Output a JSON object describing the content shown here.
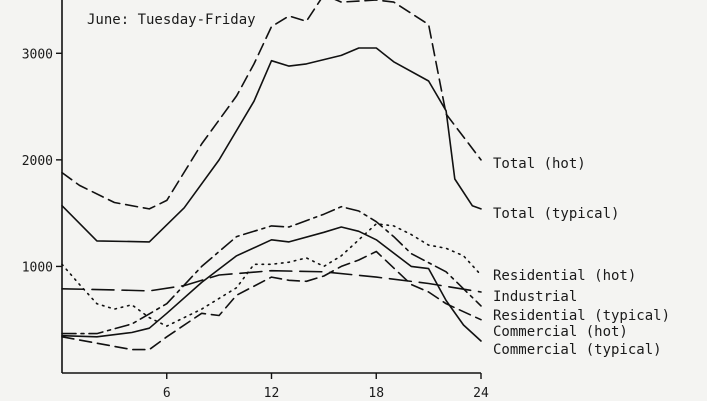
{
  "chart_data": {
    "type": "line",
    "title": "June: Tuesday-Friday",
    "xlabel": "",
    "ylabel": "",
    "xlim": [
      0,
      24
    ],
    "ylim": [
      0,
      3500
    ],
    "x_ticks": [
      6,
      12,
      18,
      24
    ],
    "y_ticks": [
      1000,
      2000,
      3000
    ],
    "grid": false,
    "legend": "direct labels at right end of lines",
    "series": [
      {
        "name": "Total (hot)",
        "dash": "dashed",
        "x": [
          0,
          1,
          3,
          5,
          6,
          8,
          10,
          11,
          12,
          13,
          14,
          15,
          16,
          18,
          19,
          21,
          22,
          24
        ],
        "y": [
          1880,
          1760,
          1600,
          1540,
          1620,
          2150,
          2600,
          2900,
          3250,
          3350,
          3300,
          3550,
          3480,
          3500,
          3480,
          3270,
          2430,
          2000
        ]
      },
      {
        "name": "Total (typical)",
        "dash": "solid",
        "x": [
          0,
          2,
          5,
          7,
          9,
          11,
          12,
          13,
          14,
          16,
          17,
          18,
          19,
          21,
          22,
          22.5,
          23.5,
          24
        ],
        "y": [
          1570,
          1240,
          1230,
          1550,
          2000,
          2550,
          2930,
          2880,
          2900,
          2980,
          3050,
          3050,
          2920,
          2740,
          2460,
          1820,
          1570,
          1540
        ]
      },
      {
        "name": "Residential (hot)",
        "dash": "dotted",
        "x": [
          0,
          1,
          2,
          3,
          4,
          5,
          6,
          7,
          8,
          9,
          10,
          11,
          12,
          13,
          14,
          15,
          16,
          17,
          18,
          19,
          20,
          21,
          22,
          23,
          24
        ],
        "y": [
          1020,
          830,
          650,
          600,
          640,
          520,
          440,
          520,
          600,
          700,
          800,
          1020,
          1020,
          1040,
          1080,
          1000,
          1100,
          1250,
          1400,
          1380,
          1300,
          1200,
          1170,
          1100,
          920
        ]
      },
      {
        "name": "Industrial",
        "dash": "long-dash",
        "x": [
          0,
          3,
          5,
          7,
          9,
          12,
          15,
          18,
          21,
          24
        ],
        "y": [
          790,
          780,
          770,
          820,
          920,
          960,
          950,
          900,
          840,
          760
        ]
      },
      {
        "name": "Residential (typical)",
        "dash": "dash-dot",
        "x": [
          0,
          2,
          4,
          6,
          8,
          10,
          12,
          13,
          15,
          16,
          17,
          18,
          19,
          20,
          22,
          24
        ],
        "y": [
          370,
          370,
          460,
          650,
          1000,
          1280,
          1380,
          1370,
          1490,
          1560,
          1520,
          1420,
          1280,
          1120,
          950,
          630
        ]
      },
      {
        "name": "Commercial (hot)",
        "dash": "dashed",
        "x": [
          0,
          2,
          4,
          5,
          6,
          8,
          9,
          10,
          12,
          13,
          14,
          15,
          16,
          17,
          18,
          20,
          21,
          22,
          24
        ],
        "y": [
          340,
          280,
          220,
          220,
          340,
          560,
          540,
          730,
          900,
          870,
          860,
          910,
          1000,
          1060,
          1140,
          830,
          760,
          650,
          500
        ]
      },
      {
        "name": "Commercial (typical)",
        "dash": "solid",
        "x": [
          0,
          2,
          4,
          5,
          6,
          8,
          10,
          12,
          13,
          15,
          16,
          17,
          18,
          20,
          21,
          22,
          23,
          24
        ],
        "y": [
          350,
          340,
          380,
          420,
          560,
          850,
          1100,
          1250,
          1230,
          1320,
          1370,
          1330,
          1250,
          1000,
          980,
          680,
          450,
          300
        ]
      }
    ]
  }
}
